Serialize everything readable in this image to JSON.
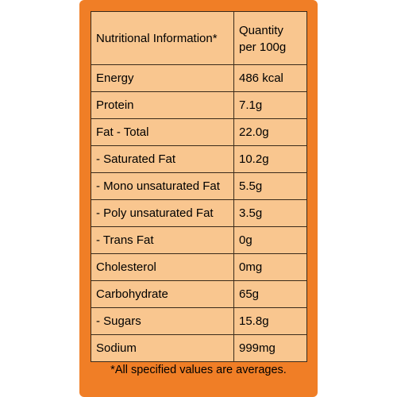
{
  "header": {
    "label": "Nutritional Information*",
    "quantity_line1": "Quantity",
    "quantity_line2": "per 100g"
  },
  "rows": [
    {
      "name": "Energy",
      "value": "486 kcal"
    },
    {
      "name": "Protein",
      "value": "7.1g"
    },
    {
      "name": "Fat - Total",
      "value": "22.0g"
    },
    {
      "name": "- Saturated Fat",
      "value": "10.2g"
    },
    {
      "name": "- Mono unsaturated Fat",
      "value": "5.5g"
    },
    {
      "name": "- Poly unsaturated Fat",
      "value": "3.5g"
    },
    {
      "name": "- Trans Fat",
      "value": "0g"
    },
    {
      "name": "Cholesterol",
      "value": "0mg"
    },
    {
      "name": "Carbohydrate",
      "value": "65g"
    },
    {
      "name": "- Sugars",
      "value": "15.8g"
    },
    {
      "name": "Sodium",
      "value": "999mg"
    }
  ],
  "footnote": "*All specified values are averages.",
  "colors": {
    "panel": "#f07e26",
    "table_fill": "#f9c68f",
    "border": "#3a2a1a"
  }
}
